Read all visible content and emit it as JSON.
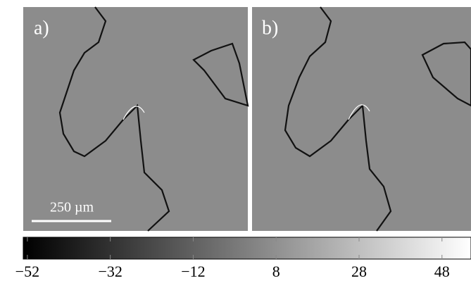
{
  "panels": [
    {
      "label": "a)"
    },
    {
      "label": "b)"
    }
  ],
  "scale_bar": {
    "label": "250 µm"
  },
  "colorbar": {
    "type": "colorbar",
    "colormap": [
      "#000000",
      "#ffffff"
    ],
    "xlim": [
      -53,
      55
    ],
    "xticks": [
      -52,
      -32,
      -12,
      8,
      28,
      48
    ]
  }
}
